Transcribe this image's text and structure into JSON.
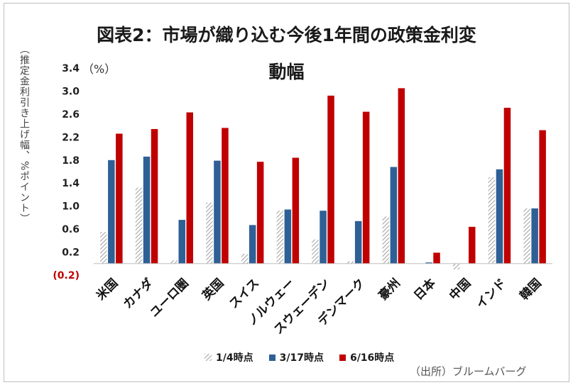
{
  "title_line1": "図表2：市場が織り込む今後1年間の政策金利変",
  "title_line2": "動幅",
  "unit_label": "（%）",
  "y_axis_label": "（推定金利引き上げ幅、%ポイント）",
  "source": "（出所）ブルームバーグ",
  "colors": {
    "s1": "#bfbfbf",
    "s2": "#2e6096",
    "s3": "#c00000",
    "neg_tick": "#c00000"
  },
  "chart_data": {
    "type": "bar",
    "categories": [
      "米国",
      "カナダ",
      "ユーロ圏",
      "英国",
      "スイス",
      "ノルウェー",
      "スウェーデン",
      "デンマーク",
      "豪州",
      "日本",
      "中国",
      "インド",
      "韓国"
    ],
    "series": [
      {
        "name": "1/4時点",
        "pattern": "hatched",
        "values": [
          0.55,
          1.32,
          0.06,
          1.06,
          0.17,
          0.92,
          0.42,
          0.04,
          0.82,
          0.0,
          -0.1,
          1.5,
          0.96
        ]
      },
      {
        "name": "3/17時点",
        "values": [
          1.8,
          1.86,
          0.76,
          1.79,
          0.67,
          0.94,
          0.92,
          0.74,
          1.68,
          0.02,
          0.0,
          1.64,
          0.96
        ]
      },
      {
        "name": "6/16時点",
        "values": [
          2.26,
          2.34,
          2.63,
          2.36,
          1.77,
          1.84,
          2.92,
          2.64,
          3.05,
          0.19,
          0.64,
          2.71,
          2.32
        ]
      }
    ],
    "yticks": [
      "(0.2)",
      "0.2",
      "0.6",
      "1.0",
      "1.4",
      "1.8",
      "2.2",
      "2.6",
      "3.0",
      "3.4"
    ],
    "ylim": [
      -0.2,
      3.4
    ],
    "legend_position": "bottom",
    "grid": false
  }
}
